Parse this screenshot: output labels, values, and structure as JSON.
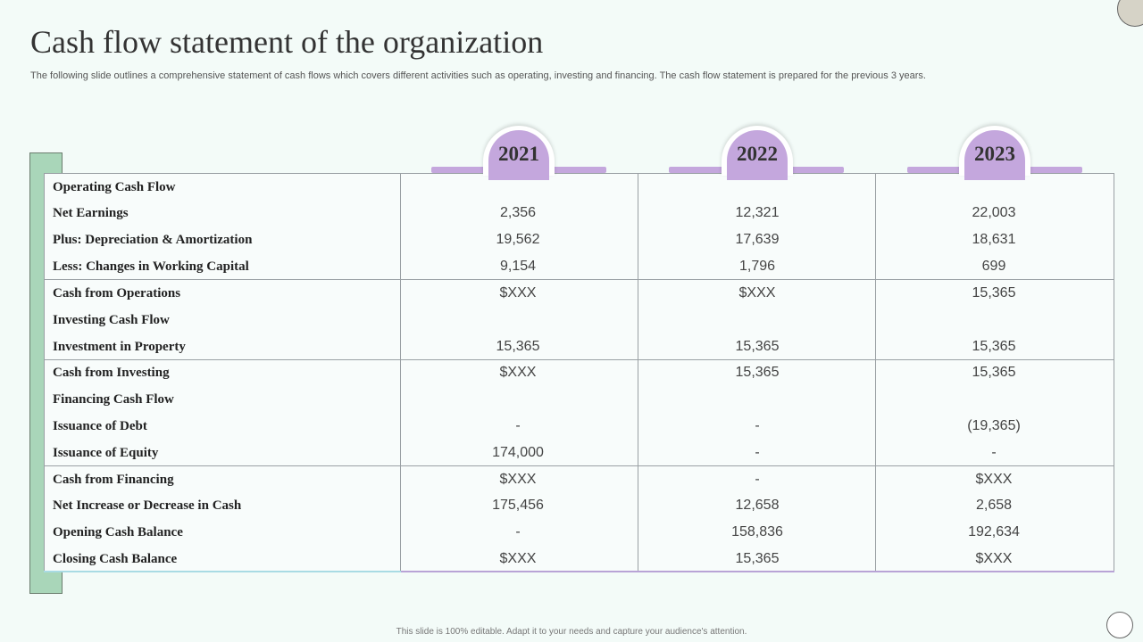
{
  "title": "Cash flow statement of the organization",
  "subtitle": "The following slide outlines a comprehensive statement of cash flows which covers different activities such as operating, investing and financing. The cash flow statement is prepared for the previous 3 years.",
  "years": [
    "2021",
    "2022",
    "2023"
  ],
  "rows": [
    {
      "label": "Operating Cash Flow",
      "values": [
        "",
        "",
        ""
      ]
    },
    {
      "label": "Net Earnings",
      "values": [
        "2,356",
        "12,321",
        "22,003"
      ]
    },
    {
      "label": "Plus: Depreciation & Amortization",
      "values": [
        "19,562",
        "17,639",
        "18,631"
      ]
    },
    {
      "label": "Less: Changes in Working Capital",
      "values": [
        "9,154",
        "1,796",
        "699"
      ]
    },
    {
      "label": "Cash from Operations",
      "values": [
        "$XXX",
        "$XXX",
        "15,365"
      ]
    },
    {
      "label": "Investing Cash Flow",
      "values": [
        "",
        "",
        ""
      ]
    },
    {
      "label": "Investment in Property",
      "values": [
        "15,365",
        "15,365",
        "15,365"
      ]
    },
    {
      "label": "Cash from Investing",
      "values": [
        "$XXX",
        "15,365",
        "15,365"
      ]
    },
    {
      "label": "Financing Cash Flow",
      "values": [
        "",
        "",
        ""
      ]
    },
    {
      "label": "Issuance of Debt",
      "values": [
        "-",
        "-",
        "(19,365)"
      ]
    },
    {
      "label": "Issuance of Equity",
      "values": [
        "174,000",
        "-",
        "-"
      ]
    },
    {
      "label": "Cash from Financing",
      "values": [
        "$XXX",
        "-",
        "$XXX"
      ]
    },
    {
      "label": "Net Increase or Decrease in Cash",
      "values": [
        "175,456",
        "12,658",
        "2,658"
      ]
    },
    {
      "label": "Opening Cash Balance",
      "values": [
        "-",
        "158,836",
        "192,634"
      ]
    },
    {
      "label": "Closing Cash Balance",
      "values": [
        "$XXX",
        "15,365",
        "$XXX"
      ]
    }
  ],
  "footer": "This slide is 100% editable. Adapt it to your needs and capture your audience's attention.",
  "colors": {
    "accent_purple": "#c4a7dd",
    "accent_green": "#a9d6b9",
    "background": "#f3fbf8"
  }
}
